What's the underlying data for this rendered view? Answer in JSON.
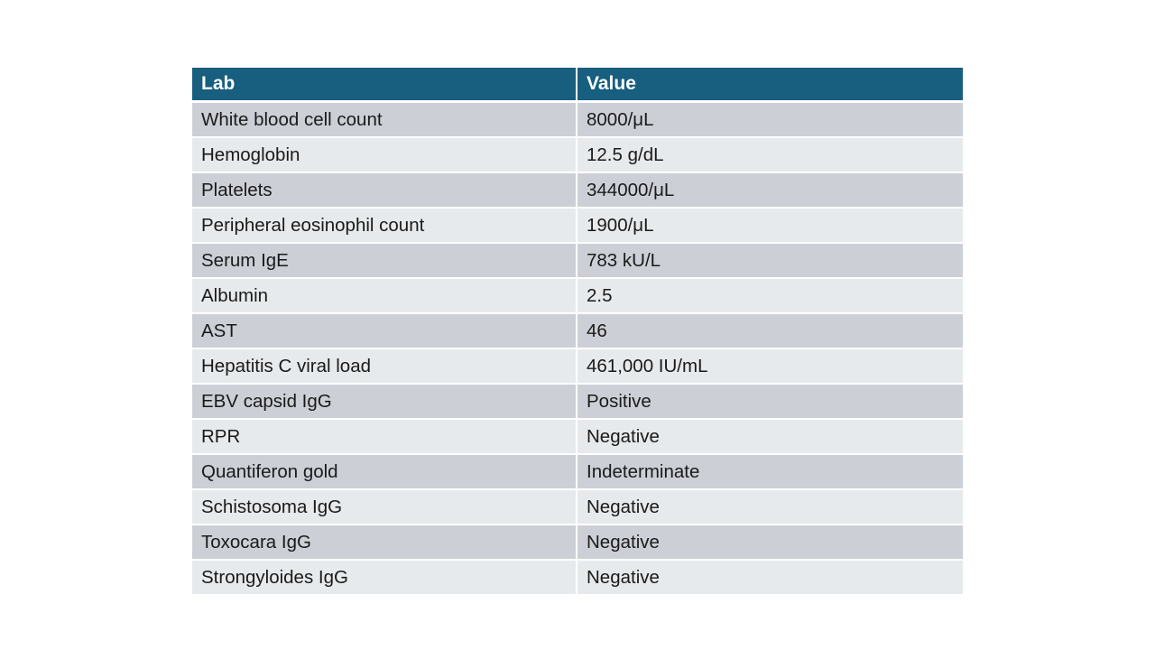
{
  "table": {
    "headers": [
      "Lab",
      "Value"
    ],
    "rows": [
      {
        "lab": "White blood cell count",
        "value": "8000/μL"
      },
      {
        "lab": "Hemoglobin",
        "value": "12.5 g/dL"
      },
      {
        "lab": "Platelets",
        "value": "344000/μL"
      },
      {
        "lab": "Peripheral eosinophil count",
        "value": "1900/μL"
      },
      {
        "lab": "Serum IgE",
        "value": "783 kU/L"
      },
      {
        "lab": "Albumin",
        "value": "2.5"
      },
      {
        "lab": "AST",
        "value": "46"
      },
      {
        "lab": "Hepatitis C viral load",
        "value": "461,000 IU/mL"
      },
      {
        "lab": "EBV capsid IgG",
        "value": "Positive"
      },
      {
        "lab": "RPR",
        "value": "Negative"
      },
      {
        "lab": "Quantiferon gold",
        "value": "Indeterminate"
      },
      {
        "lab": "Schistosoma IgG",
        "value": "Negative"
      },
      {
        "lab": "Toxocara IgG",
        "value": "Negative"
      },
      {
        "lab": "Strongyloides IgG",
        "value": "Negative"
      }
    ]
  },
  "colors": {
    "header_bg": "#175e7f",
    "header_text": "#ffffff",
    "row_odd_bg": "#ccd0d6",
    "row_even_bg": "#e7eaec",
    "body_text": "#1a1a1a"
  }
}
